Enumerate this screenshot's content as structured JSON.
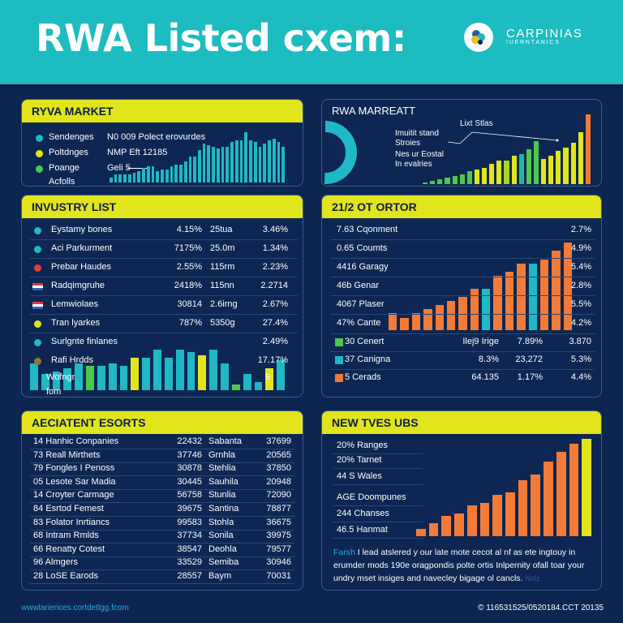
{
  "header": {
    "title": "RWA Listed cxem:",
    "logo_line1": "CARPINIAS",
    "logo_line2": "!UERNTANICS"
  },
  "colors": {
    "header_bg": "#1cbcc0",
    "page_bg": "#0c2650",
    "accent_yellow": "#e2e41c",
    "teal": "#1fb8c4",
    "green": "#4cc94c",
    "orange": "#f47a38",
    "red": "#e03a3a"
  },
  "panel1": {
    "title": "RYVA MARKET",
    "legend": [
      {
        "label": "Sendenges",
        "color": "#1fb8c4"
      },
      {
        "label": "Poltdnges",
        "color": "#e2e41c"
      },
      {
        "label": "Poange",
        "color": "#4cc94c"
      },
      {
        "label": "Acfolls",
        "color": ""
      }
    ],
    "notes": [
      "N0 009 Polect erovurdes",
      "NMP Eft 12185",
      "Geli 5"
    ],
    "chart_values": [
      3,
      5,
      5,
      5,
      5,
      6,
      7,
      9,
      10,
      10,
      7,
      8,
      8,
      10,
      11,
      11,
      13,
      16,
      16,
      20,
      24,
      23,
      22,
      21,
      22,
      22,
      25,
      26,
      26,
      31,
      26,
      25,
      22,
      24,
      26,
      27,
      25,
      22
    ]
  },
  "panel2": {
    "title": "RWA MARREATT",
    "label1": "Imuitit stand Stroies",
    "label2": "Nes ur Eostal In evalries",
    "label3": "Lixt Stlas",
    "donut_value": 0.72,
    "chart_values": [
      1,
      2,
      3,
      4,
      5,
      6,
      8,
      9,
      10,
      13,
      15,
      15,
      18,
      19,
      22,
      27,
      16,
      18,
      21,
      23,
      26,
      33,
      44
    ],
    "chart_colors": [
      "#4cc94c",
      "#4cc94c",
      "#4cc94c",
      "#4cc94c",
      "#4cc94c",
      "#4cc94c",
      "#4cc94c",
      "#e2e41c",
      "#e2e41c",
      "#e2e41c",
      "#e2e41c",
      "#a8d628",
      "#e2e41c",
      "#1fb8a0",
      "#4cc94c",
      "#4cc94c",
      "#e2e41c",
      "#e2e41c",
      "#e2e41c",
      "#e2e41c",
      "#e2e41c",
      "#e2e41c",
      "#f47a38"
    ]
  },
  "industry_list": {
    "title": "INVUSTRY LIST",
    "rows": [
      {
        "icon": "dot",
        "color": "#1fb8c4",
        "name": "Eystamy bones",
        "c1": "4.15%",
        "c2": "25tua",
        "c3": "3.46%"
      },
      {
        "icon": "dot",
        "color": "#1fb8c4",
        "name": "Aci Parkurment",
        "c1": "7175%",
        "c2": "25.0m",
        "c3": "1.34%"
      },
      {
        "icon": "dot",
        "color": "#e03a3a",
        "name": "Prebar Haudes",
        "c1": "2.55%",
        "c2": "115rm",
        "c3": "2.23%"
      },
      {
        "icon": "flag",
        "color": "#3a5ab8",
        "name": "Radqimgruhe",
        "c1": "2418%",
        "c2": "115nn",
        "c3": "2.2714"
      },
      {
        "icon": "flag",
        "color": "#3a5ab8",
        "name": "Lemwiolaes",
        "c1": "30814",
        "c2": "2.6irng",
        "c3": "2.67%"
      },
      {
        "icon": "dot",
        "color": "#e2e41c",
        "name": "Tran lyarkes",
        "c1": "787%",
        "c2": "5350g",
        "c3": "27.4%"
      },
      {
        "icon": "dot",
        "color": "#1fb8c4",
        "name": "Surlgnte finlanes",
        "c1": "",
        "c2": "",
        "c3": "2.49%"
      },
      {
        "icon": "dot",
        "color": "#8a7a3a",
        "name": "Rafi Hrdds",
        "c1": "",
        "c2": "",
        "c3": "17.17%"
      }
    ],
    "footer_label1": "Wofngr",
    "footer_label2": "fom",
    "footer_num": "9",
    "chart_values": [
      10,
      6,
      7,
      8,
      10,
      9,
      9,
      10,
      9,
      12,
      12,
      15,
      12,
      15,
      14,
      13,
      15,
      10,
      2,
      6,
      3,
      8,
      11
    ],
    "chart_colors": [
      "#1fb8c4",
      "#1fb8c4",
      "#1fb8c4",
      "#1fb8c4",
      "#1fb8c4",
      "#4cc94c",
      "#1fb8c4",
      "#1fb8c4",
      "#1fb8c4",
      "#e2e41c",
      "#1fb8c4",
      "#1fb8c4",
      "#1fb8c4",
      "#1fb8c4",
      "#1fb8c4",
      "#e2e41c",
      "#1fb8c4",
      "#1fb8c4",
      "#4cc94c",
      "#1fb8c4",
      "#1fb8c4",
      "#e2e41c",
      "#1fb8c4"
    ]
  },
  "sector": {
    "title": "21/2 OT ORTOR",
    "rows": [
      {
        "name": "7.63 Cqonment",
        "value": "2.7%"
      },
      {
        "name": "0.65 Coumts",
        "value": "4.9%"
      },
      {
        "name": "4416 Garagy",
        "value": "5.4%"
      },
      {
        "name": "46b Genar",
        "value": "2.8%"
      },
      {
        "name": "4067 Plaser",
        "value": "5.5%"
      },
      {
        "name": "47% Cante",
        "value": "4.2%"
      }
    ],
    "bottom_rows": [
      {
        "color": "#4cc94c",
        "name": "30 Cenert",
        "c1": "Ilej9 Irige",
        "c2": "7.89%",
        "c3": "3.870"
      },
      {
        "color": "#1fb8c4",
        "name": "37 Canigna",
        "c1": "8.3%",
        "c2": "23,272",
        "c3": "5.3%"
      },
      {
        "color": "#f47a38",
        "name": "5 Cerads",
        "c1": "64.135",
        "c2": "1.17%",
        "c3": "4.4%"
      }
    ],
    "chart_values": [
      4,
      3,
      4,
      5,
      6,
      7,
      8,
      10,
      10,
      13,
      14,
      16,
      16,
      17,
      19,
      21
    ],
    "chart_colors": [
      "#f47a38",
      "#f47a38",
      "#f47a38",
      "#f47a38",
      "#f47a38",
      "#f47a38",
      "#f47a38",
      "#f47a38",
      "#1fb8c4",
      "#f47a38",
      "#f47a38",
      "#f47a38",
      "#1fb8c4",
      "#f47a38",
      "#f47a38",
      "#f47a38"
    ]
  },
  "recent": {
    "title": "AECIATENT ESORTS",
    "rows": [
      {
        "name": "14 Hanhic Conpanies",
        "c1": "22432",
        "c2": "Sabanta",
        "c3": "37699"
      },
      {
        "name": "73 Reall Mirthets",
        "c1": "37746",
        "c2": "Grnhla",
        "c3": "20565"
      },
      {
        "name": "79 Fongles I Penoss",
        "c1": "30878",
        "c2": "Stehlia",
        "c3": "37850"
      },
      {
        "name": "05 Lesote Sar Madia",
        "c1": "30445",
        "c2": "Sauhila",
        "c3": "20948"
      },
      {
        "name": "14 Croyter Carmage",
        "c1": "56758",
        "c2": "Stunlia",
        "c3": "72090"
      },
      {
        "name": "84 Esrtod Femest",
        "c1": "39675",
        "c2": "Santina",
        "c3": "78877"
      },
      {
        "name": "83 Folator Inrtiancs",
        "c1": "99583",
        "c2": "Stohla",
        "c3": "36675"
      },
      {
        "name": "68 Intram Rmlds",
        "c1": "37734",
        "c2": "Sonila",
        "c3": "39975"
      },
      {
        "name": "66 Renatty Cotest",
        "c1": "38547",
        "c2": "Deohla",
        "c3": "79577"
      },
      {
        "name": "96 Almgers",
        "c1": "33529",
        "c2": "Semiba",
        "c3": "30946"
      },
      {
        "name": "28 LoSE Earods",
        "c1": "28557",
        "c2": "Baym",
        "c3": "70031"
      }
    ]
  },
  "new_types": {
    "title": "NEW TVES UBS",
    "rows": [
      "20% Ranges",
      "20% Tarnet",
      "44 S Wales",
      "AGE Doompunes",
      "244 Chanses",
      "46.5 Hanmat"
    ],
    "chart_values": [
      3,
      5,
      8,
      9,
      12,
      13,
      16,
      17,
      22,
      24,
      29,
      33,
      36,
      38
    ],
    "chart_colors": [
      "#f47a38",
      "#f47a38",
      "#f47a38",
      "#f47a38",
      "#f47a38",
      "#f47a38",
      "#f47a38",
      "#f47a38",
      "#f47a38",
      "#f47a38",
      "#f47a38",
      "#f47a38",
      "#f47a38",
      "#e2e41c"
    ],
    "paragraph_lead": "Farsh",
    "paragraph": "I lead atslered y our late mote cecot al nf as ete ingtouy in erumder mods 190e oragpondis polte ortis Inlpernity ofall toar your undry mset insiges and navecley bigage ol cancls.",
    "more": "Nolz"
  },
  "footer": {
    "left": "wwwlarierices.cortdetlgg.fcom",
    "right": "© 116531525/0520184.CCT 20135"
  }
}
